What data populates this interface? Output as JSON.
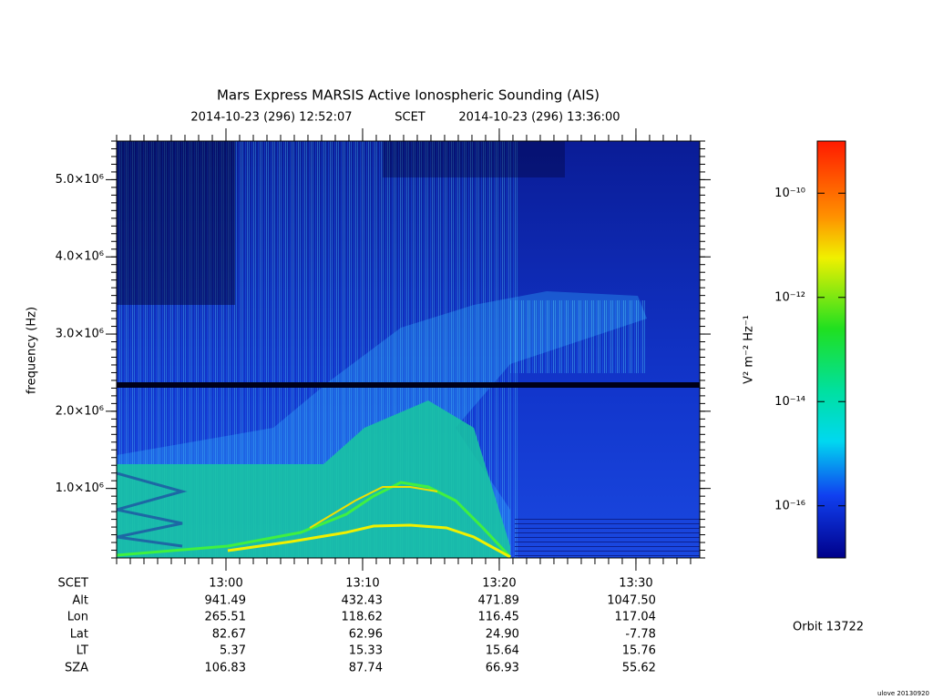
{
  "chart_data": {
    "type": "spectrogram",
    "title": "Mars Express MARSIS Active Ionospheric Sounding (AIS)",
    "start_time": "2014-10-23 (296) 12:52:07",
    "time_system": "SCET",
    "end_time": "2014-10-23 (296) 13:36:00",
    "y_label": "frequency (Hz)",
    "ylim": [
      100000,
      5500000
    ],
    "yticks": [
      {
        "value": 1000000,
        "label": "1.0×10⁶"
      },
      {
        "value": 2000000,
        "label": "2.0×10⁶"
      },
      {
        "value": 3000000,
        "label": "3.0×10⁶"
      },
      {
        "value": 4000000,
        "label": "4.0×10⁶"
      },
      {
        "value": 5000000,
        "label": "5.0×10⁶"
      }
    ],
    "xlim": [
      772,
      814.67
    ],
    "xticks": [
      {
        "value": 780,
        "label": "13:00"
      },
      {
        "value": 790,
        "label": "13:10"
      },
      {
        "value": 800,
        "label": "13:20"
      },
      {
        "value": 810,
        "label": "13:30"
      }
    ],
    "colorbar": {
      "label": "V² m⁻² Hz⁻¹",
      "log_scale": true,
      "zlim": [
        1e-17,
        1e-09
      ],
      "ticks": [
        {
          "value": 1e-10,
          "label": "10⁻¹⁰"
        },
        {
          "value": 1e-12,
          "label": "10⁻¹²"
        },
        {
          "value": 1e-14,
          "label": "10⁻¹⁴"
        },
        {
          "value": 1e-16,
          "label": "10⁻¹⁶"
        }
      ]
    },
    "ephemeris": {
      "row_labels": [
        "SCET",
        "Alt",
        "Lon",
        "Lat",
        "LT",
        "SZA"
      ],
      "rows": [
        [
          "941.49",
          "432.43",
          "471.89",
          "1047.50"
        ],
        [
          "265.51",
          "118.62",
          "116.45",
          "117.04"
        ],
        [
          "82.67",
          "62.96",
          "24.90",
          "-7.78"
        ],
        [
          "5.37",
          "15.33",
          "15.64",
          "15.76"
        ],
        [
          "106.83",
          "87.74",
          "66.93",
          "55.62"
        ]
      ]
    },
    "orbit": "Orbit 13722",
    "footer": "ulove 20130920"
  }
}
